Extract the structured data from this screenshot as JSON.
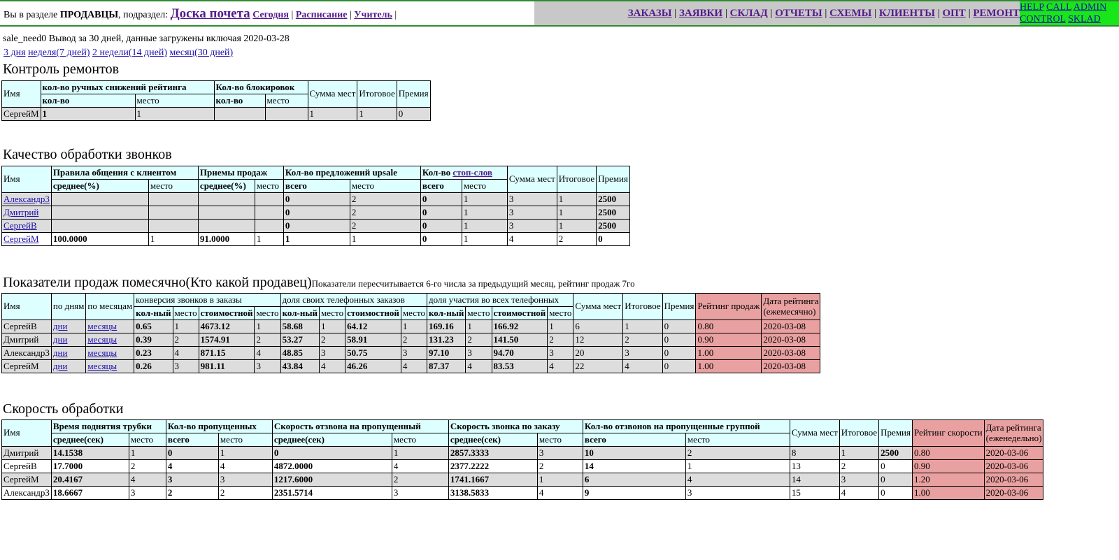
{
  "header": {
    "prefix": "Вы в разделе ",
    "section": "ПРОДАВЦЫ",
    "sub_label": ", подраздел: ",
    "current": "Доска почета",
    "sub_links": [
      "Сегодня",
      "Расписание",
      "Учитель"
    ],
    "nav": [
      "ЗАКАЗЫ",
      "ЗАЯВКИ",
      "СКЛАД",
      "ОТЧЕТЫ",
      "СХЕМЫ",
      "КЛИЕНТЫ",
      "ОПТ",
      "РЕМОНТ"
    ],
    "extra": [
      "HELP",
      "CALL",
      "ADMIN",
      "CONTROL",
      "SKLAD"
    ],
    "colors": {
      "bar_border": "#2e8b2e",
      "nav_bg": "#c8c8c8",
      "extra_bg": "#19e619"
    }
  },
  "info": {
    "text": "sale_need0 Вывод за 30 дней, данные загружены включая 2020-03-28",
    "periods": [
      "3 дня",
      "неделя(7 дней)",
      "2 недели(14 дней)",
      "месяц(30 дней)"
    ]
  },
  "colors": {
    "header_bg": "#ddffff",
    "row_bg": "#dddddd",
    "rating_bg": "#e8a0a0"
  },
  "repairs": {
    "title": "Контроль ремонтов",
    "h": {
      "name": "Имя",
      "manual": "кол-во ручных снижений рейтинга",
      "blocks": "Кол-во блокировок",
      "sum": "Сумма мест",
      "total": "Итоговое",
      "bonus": "Премия",
      "count": "кол-во",
      "place": "место"
    },
    "rows": [
      [
        "СергейМ",
        "1",
        "1",
        "",
        "",
        "1",
        "1",
        "0"
      ]
    ]
  },
  "calls": {
    "title": "Качество обработки звонков",
    "h": {
      "name": "Имя",
      "rules": "Правила общения с клиентом",
      "methods": "Приемы продаж",
      "upsale": "Кол-во предложений upsale",
      "stop_prefix": "Кол-во ",
      "stop_link": "стоп-слов",
      "sum": "Сумма мест",
      "total": "Итоговое",
      "bonus": "Премия",
      "avg": "среднее(%)",
      "place": "место",
      "all": "всего"
    },
    "rows": [
      [
        "Александр3",
        "",
        "",
        "",
        "",
        "0",
        "2",
        "0",
        "1",
        "3",
        "1",
        "2500"
      ],
      [
        "Дмитрий",
        "",
        "",
        "",
        "",
        "0",
        "2",
        "0",
        "1",
        "3",
        "1",
        "2500"
      ],
      [
        "СергейВ",
        "",
        "",
        "",
        "",
        "0",
        "2",
        "0",
        "1",
        "3",
        "1",
        "2500"
      ],
      [
        "СергейМ",
        "100.0000",
        "1",
        "91.0000",
        "1",
        "1",
        "1",
        "0",
        "1",
        "4",
        "2",
        "0"
      ]
    ]
  },
  "sales": {
    "title": "Показатели продаж помесячно(Кто какой продавец)",
    "note": "Показатели пересчитывается 6-го числа за предыдущий месяц, рейтинг продаж 7го",
    "h": {
      "name": "Имя",
      "by_days": "по дням",
      "by_months": "по месяцам",
      "conv": "конверсия звонков в заказы",
      "own": "доля своих телефонных заказов",
      "part": "доля участия во всех телефонных",
      "qty": "кол-ный",
      "cost": "стоимостной",
      "place": "место",
      "sum": "Сумма мест",
      "total": "Итоговое",
      "bonus": "Премия",
      "rating": "Рейтинг продаж",
      "date_line1": "Дата рейтинга",
      "date_line2": "(ежемесячно)"
    },
    "links": {
      "days": "дни",
      "months": "месяцы"
    },
    "rows": [
      [
        "СергейВ",
        "0.65",
        "1",
        "4673.12",
        "1",
        "58.68",
        "1",
        "64.12",
        "1",
        "169.16",
        "1",
        "166.92",
        "1",
        "6",
        "1",
        "0",
        "0.80",
        "2020-03-08"
      ],
      [
        "Дмитрий",
        "0.39",
        "2",
        "1574.91",
        "2",
        "53.27",
        "2",
        "58.91",
        "2",
        "131.23",
        "2",
        "141.50",
        "2",
        "12",
        "2",
        "0",
        "0.90",
        "2020-03-08"
      ],
      [
        "Александр3",
        "0.23",
        "4",
        "871.15",
        "4",
        "48.85",
        "3",
        "50.75",
        "3",
        "97.10",
        "3",
        "94.70",
        "3",
        "20",
        "3",
        "0",
        "1.00",
        "2020-03-08"
      ],
      [
        "СергейМ",
        "0.26",
        "3",
        "981.11",
        "3",
        "43.84",
        "4",
        "46.26",
        "4",
        "87.37",
        "4",
        "83.53",
        "4",
        "22",
        "4",
        "0",
        "1.00",
        "2020-03-08"
      ]
    ]
  },
  "speed": {
    "title": "Скорость обработки",
    "h": {
      "name": "Имя",
      "pickup": "Время поднятия трубки",
      "missed": "Кол-во пропущенных",
      "callback": "Скорость отзвона на пропущенный",
      "order_call": "Скорость звонка по заказу",
      "group_cb": "Кол-во отзвонов на пропущенные группой",
      "avg": "среднее(сек)",
      "place": "место",
      "all": "всего",
      "sum": "Сумма мест",
      "total": "Итоговое",
      "bonus": "Премия",
      "rating": "Рейтинг скорости",
      "date_line1": "Дата рейтинга",
      "date_line2": "(еженедельно)"
    },
    "rows": [
      [
        "Дмитрий",
        "14.1538",
        "1",
        "0",
        "1",
        "0",
        "1",
        "2857.3333",
        "3",
        "10",
        "2",
        "8",
        "1",
        "2500",
        "0.80",
        "2020-03-06"
      ],
      [
        "СергейВ",
        "17.7000",
        "2",
        "4",
        "4",
        "4872.0000",
        "4",
        "2377.2222",
        "2",
        "14",
        "1",
        "13",
        "2",
        "0",
        "0.90",
        "2020-03-06"
      ],
      [
        "СергейМ",
        "20.4167",
        "4",
        "3",
        "3",
        "1217.6000",
        "2",
        "1741.1667",
        "1",
        "6",
        "4",
        "14",
        "3",
        "0",
        "1.20",
        "2020-03-06"
      ],
      [
        "Александр3",
        "18.6667",
        "3",
        "2",
        "2",
        "2351.5714",
        "3",
        "3138.5833",
        "4",
        "9",
        "3",
        "15",
        "4",
        "0",
        "1.00",
        "2020-03-06"
      ]
    ]
  }
}
